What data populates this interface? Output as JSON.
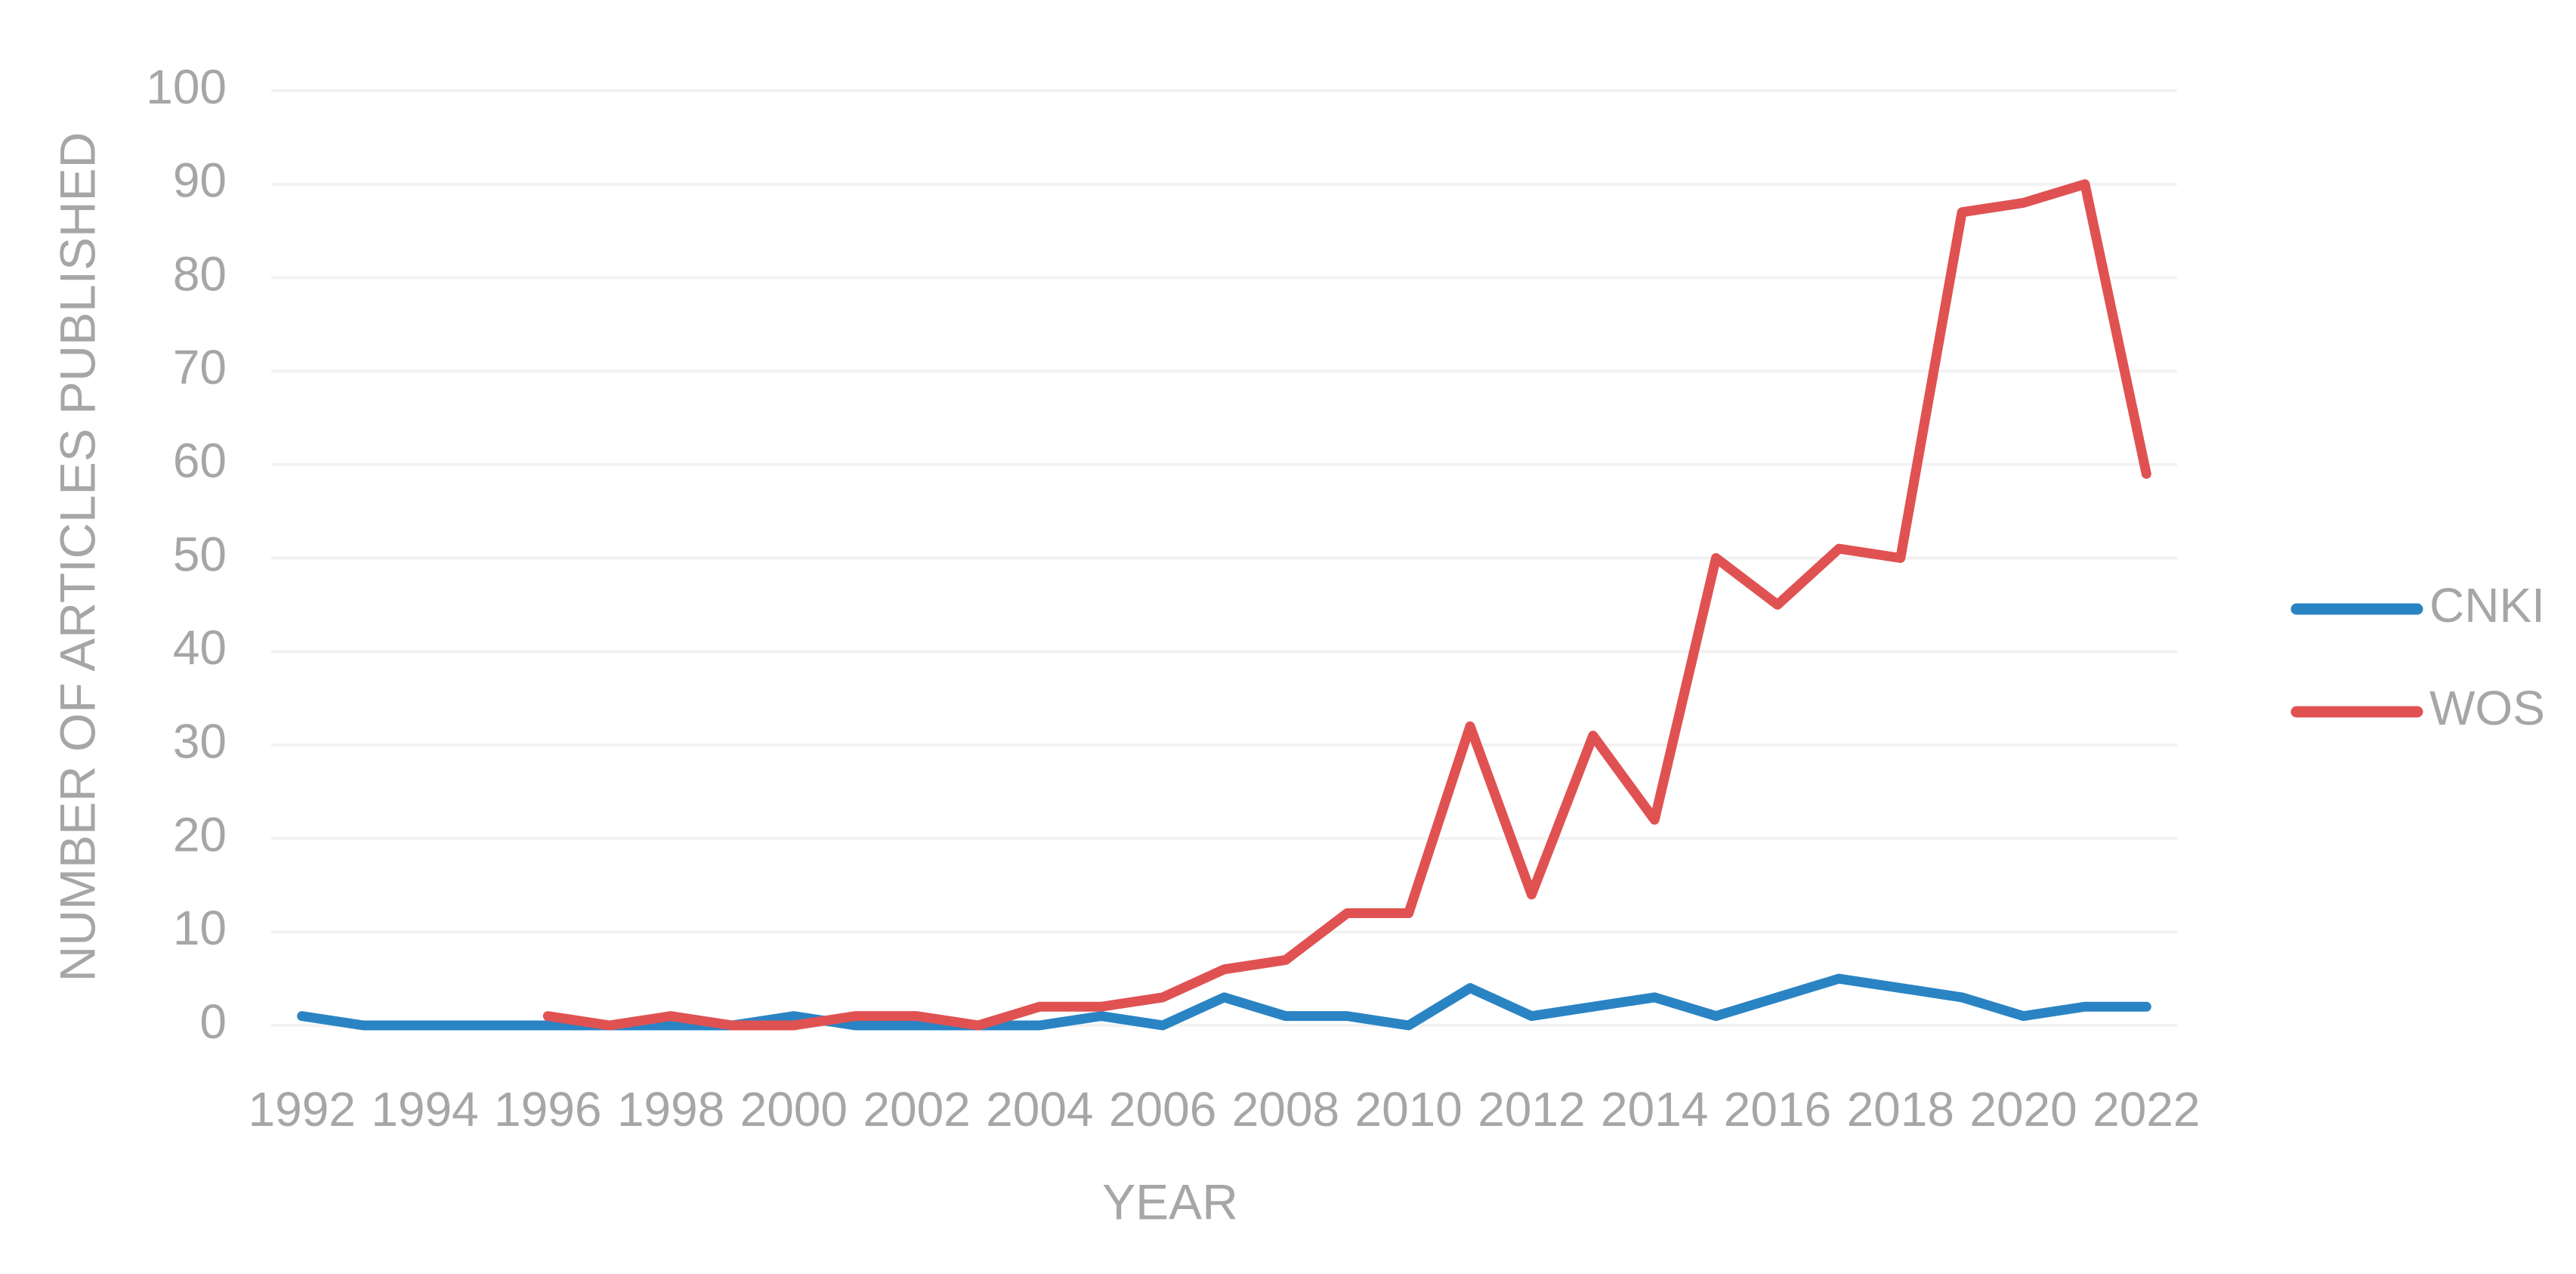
{
  "chart_data": {
    "type": "line",
    "x_label": "YEAR",
    "y_label": "NUMBER OF ARTICLES PUBLISHED",
    "x": [
      1992,
      1993,
      1994,
      1995,
      1996,
      1997,
      1998,
      1999,
      2000,
      2001,
      2002,
      2003,
      2004,
      2005,
      2006,
      2007,
      2008,
      2009,
      2010,
      2011,
      2012,
      2013,
      2014,
      2015,
      2016,
      2017,
      2018,
      2019,
      2020,
      2021,
      2022
    ],
    "series": [
      {
        "name": "CNKI",
        "color": "#2a84c4",
        "values": [
          1,
          0,
          0,
          0,
          0,
          0,
          0,
          0,
          1,
          0,
          0,
          0,
          0,
          1,
          0,
          3,
          1,
          1,
          0,
          4,
          1,
          2,
          3,
          1,
          3,
          5,
          4,
          3,
          1,
          2,
          2
        ]
      },
      {
        "name": "WOS",
        "color": "#e05252",
        "values": [
          null,
          null,
          null,
          null,
          1,
          0,
          1,
          0,
          0,
          1,
          1,
          0,
          2,
          2,
          3,
          6,
          7,
          12,
          12,
          32,
          14,
          31,
          22,
          50,
          45,
          51,
          50,
          87,
          88,
          90,
          59
        ]
      }
    ],
    "xlim": [
      1991.5,
      2022.5
    ],
    "xticks": [
      1992,
      1994,
      1996,
      1998,
      2000,
      2002,
      2004,
      2006,
      2008,
      2010,
      2012,
      2014,
      2016,
      2018,
      2020,
      2022
    ],
    "ylim": [
      0,
      100
    ],
    "yticks": [
      0,
      10,
      20,
      30,
      40,
      50,
      60,
      70,
      80,
      90,
      100
    ],
    "grid": true,
    "legend": "right"
  }
}
